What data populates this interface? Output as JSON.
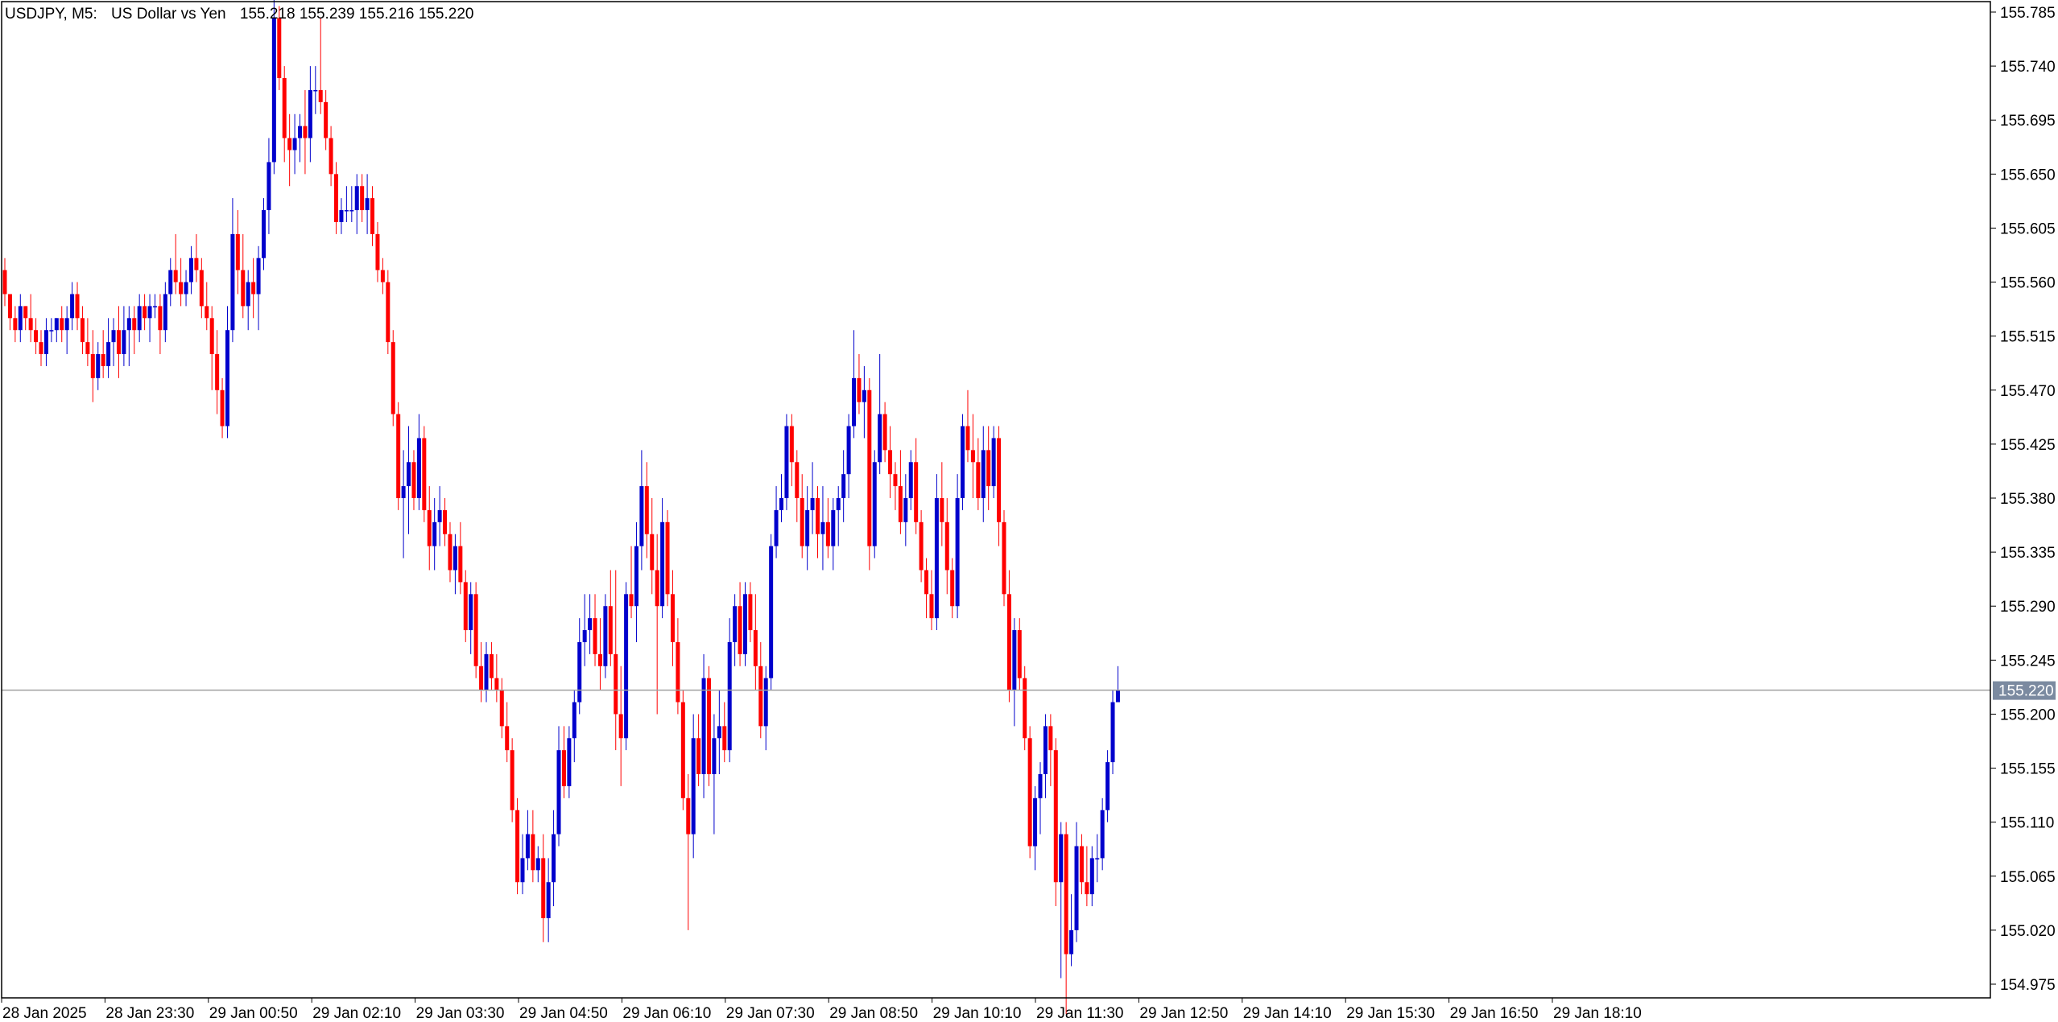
{
  "header": {
    "symbol": "USDJPY, M5:",
    "description": "US Dollar vs Yen",
    "ohlc": "155.218 155.239 155.216 155.220"
  },
  "colors": {
    "bull": "#0000CC",
    "bear": "#FF0000",
    "background": "#FFFFFF",
    "axis": "#000000",
    "price_line": "#A0A0A0",
    "price_label_bg": "#7B8AA0",
    "price_label_text": "#FFFFFF"
  },
  "chart_data": {
    "type": "candlestick",
    "symbol": "USDJPY",
    "timeframe": "M5",
    "ylim": [
      154.94,
      155.805
    ],
    "grid": false,
    "y_ticks": [
      "155.785",
      "155.740",
      "155.695",
      "155.650",
      "155.605",
      "155.560",
      "155.515",
      "155.470",
      "155.425",
      "155.380",
      "155.335",
      "155.290",
      "155.245",
      "155.200",
      "155.155",
      "155.110",
      "155.065",
      "155.020",
      "154.975"
    ],
    "x_ticks": [
      "28 Jan 2025",
      "28 Jan 23:30",
      "29 Jan 00:50",
      "29 Jan 02:10",
      "29 Jan 03:30",
      "29 Jan 04:50",
      "29 Jan 06:10",
      "29 Jan 07:30",
      "29 Jan 08:50",
      "29 Jan 10:10",
      "29 Jan 11:30",
      "29 Jan 12:50",
      "29 Jan 14:10",
      "29 Jan 15:30",
      "29 Jan 16:50",
      "29 Jan 18:10"
    ],
    "current_price": {
      "value": 155.22,
      "label": "155.220"
    },
    "candles_ohlc": [
      [
        155.57,
        155.58,
        155.54,
        155.55
      ],
      [
        155.55,
        155.55,
        155.52,
        155.53
      ],
      [
        155.53,
        155.54,
        155.51,
        155.52
      ],
      [
        155.52,
        155.55,
        155.51,
        155.54
      ],
      [
        155.54,
        155.54,
        155.52,
        155.53
      ],
      [
        155.53,
        155.55,
        155.51,
        155.52
      ],
      [
        155.52,
        155.53,
        155.5,
        155.51
      ],
      [
        155.51,
        155.52,
        155.49,
        155.5
      ],
      [
        155.5,
        155.53,
        155.49,
        155.52
      ],
      [
        155.52,
        155.53,
        155.51,
        155.52
      ],
      [
        155.52,
        155.53,
        155.51,
        155.53
      ],
      [
        155.53,
        155.54,
        155.51,
        155.52
      ],
      [
        155.52,
        155.54,
        155.5,
        155.53
      ],
      [
        155.53,
        155.56,
        155.52,
        155.55
      ],
      [
        155.55,
        155.56,
        155.52,
        155.53
      ],
      [
        155.53,
        155.54,
        155.5,
        155.51
      ],
      [
        155.51,
        155.53,
        155.49,
        155.5
      ],
      [
        155.5,
        155.52,
        155.46,
        155.48
      ],
      [
        155.48,
        155.51,
        155.47,
        155.5
      ],
      [
        155.5,
        155.52,
        155.48,
        155.49
      ],
      [
        155.49,
        155.53,
        155.48,
        155.51
      ],
      [
        155.51,
        155.53,
        155.49,
        155.52
      ],
      [
        155.52,
        155.54,
        155.48,
        155.5
      ],
      [
        155.5,
        155.54,
        155.49,
        155.52
      ],
      [
        155.52,
        155.54,
        155.49,
        155.53
      ],
      [
        155.53,
        155.54,
        155.5,
        155.52
      ],
      [
        155.52,
        155.55,
        155.51,
        155.54
      ],
      [
        155.54,
        155.55,
        155.52,
        155.53
      ],
      [
        155.53,
        155.55,
        155.51,
        155.54
      ],
      [
        155.54,
        155.55,
        155.53,
        155.54
      ],
      [
        155.54,
        155.55,
        155.5,
        155.52
      ],
      [
        155.52,
        155.56,
        155.51,
        155.55
      ],
      [
        155.55,
        155.58,
        155.54,
        155.57
      ],
      [
        155.57,
        155.6,
        155.55,
        155.56
      ],
      [
        155.56,
        155.58,
        155.54,
        155.55
      ],
      [
        155.55,
        155.57,
        155.54,
        155.56
      ],
      [
        155.56,
        155.59,
        155.55,
        155.58
      ],
      [
        155.58,
        155.6,
        155.56,
        155.57
      ],
      [
        155.57,
        155.58,
        155.53,
        155.54
      ],
      [
        155.54,
        155.56,
        155.52,
        155.53
      ],
      [
        155.53,
        155.54,
        155.47,
        155.5
      ],
      [
        155.5,
        155.52,
        155.45,
        155.47
      ],
      [
        155.47,
        155.48,
        155.43,
        155.44
      ],
      [
        155.44,
        155.54,
        155.43,
        155.52
      ],
      [
        155.52,
        155.63,
        155.51,
        155.6
      ],
      [
        155.6,
        155.62,
        155.55,
        155.57
      ],
      [
        155.57,
        155.6,
        155.53,
        155.54
      ],
      [
        155.54,
        155.57,
        155.52,
        155.56
      ],
      [
        155.56,
        155.58,
        155.53,
        155.55
      ],
      [
        155.55,
        155.59,
        155.52,
        155.58
      ],
      [
        155.58,
        155.63,
        155.57,
        155.62
      ],
      [
        155.62,
        155.68,
        155.6,
        155.66
      ],
      [
        155.66,
        155.8,
        155.65,
        155.78
      ],
      [
        155.78,
        155.79,
        155.72,
        155.73
      ],
      [
        155.73,
        155.74,
        155.66,
        155.68
      ],
      [
        155.68,
        155.7,
        155.64,
        155.67
      ],
      [
        155.67,
        155.7,
        155.65,
        155.68
      ],
      [
        155.68,
        155.7,
        155.66,
        155.69
      ],
      [
        155.69,
        155.72,
        155.65,
        155.68
      ],
      [
        155.68,
        155.74,
        155.66,
        155.72
      ],
      [
        155.72,
        155.74,
        155.7,
        155.72
      ],
      [
        155.72,
        155.78,
        155.7,
        155.71
      ],
      [
        155.71,
        155.72,
        155.67,
        155.68
      ],
      [
        155.68,
        155.69,
        155.64,
        155.65
      ],
      [
        155.65,
        155.66,
        155.6,
        155.61
      ],
      [
        155.61,
        155.63,
        155.6,
        155.62
      ],
      [
        155.62,
        155.64,
        155.61,
        155.62
      ],
      [
        155.62,
        155.64,
        155.61,
        155.62
      ],
      [
        155.62,
        155.65,
        155.6,
        155.64
      ],
      [
        155.64,
        155.65,
        155.61,
        155.62
      ],
      [
        155.62,
        155.65,
        155.6,
        155.63
      ],
      [
        155.63,
        155.64,
        155.59,
        155.6
      ],
      [
        155.6,
        155.61,
        155.56,
        155.57
      ],
      [
        155.57,
        155.58,
        155.55,
        155.56
      ],
      [
        155.56,
        155.57,
        155.5,
        155.51
      ],
      [
        155.51,
        155.52,
        155.44,
        155.45
      ],
      [
        155.45,
        155.46,
        155.37,
        155.38
      ],
      [
        155.38,
        155.42,
        155.33,
        155.39
      ],
      [
        155.39,
        155.44,
        155.35,
        155.41
      ],
      [
        155.41,
        155.42,
        155.37,
        155.38
      ],
      [
        155.38,
        155.45,
        155.37,
        155.43
      ],
      [
        155.43,
        155.44,
        155.36,
        155.37
      ],
      [
        155.37,
        155.39,
        155.32,
        155.34
      ],
      [
        155.34,
        155.38,
        155.32,
        155.36
      ],
      [
        155.36,
        155.39,
        155.34,
        155.37
      ],
      [
        155.37,
        155.38,
        155.34,
        155.35
      ],
      [
        155.35,
        155.36,
        155.31,
        155.32
      ],
      [
        155.32,
        155.35,
        155.3,
        155.34
      ],
      [
        155.34,
        155.36,
        155.3,
        155.31
      ],
      [
        155.31,
        155.32,
        155.26,
        155.27
      ],
      [
        155.27,
        155.31,
        155.25,
        155.3
      ],
      [
        155.3,
        155.31,
        155.23,
        155.24
      ],
      [
        155.24,
        155.26,
        155.21,
        155.22
      ],
      [
        155.22,
        155.26,
        155.21,
        155.25
      ],
      [
        155.25,
        155.26,
        155.22,
        155.23
      ],
      [
        155.23,
        155.25,
        155.21,
        155.22
      ],
      [
        155.22,
        155.23,
        155.18,
        155.19
      ],
      [
        155.19,
        155.21,
        155.16,
        155.17
      ],
      [
        155.17,
        155.18,
        155.11,
        155.12
      ],
      [
        155.12,
        155.13,
        155.05,
        155.06
      ],
      [
        155.06,
        155.1,
        155.05,
        155.08
      ],
      [
        155.08,
        155.12,
        155.07,
        155.1
      ],
      [
        155.1,
        155.12,
        155.06,
        155.07
      ],
      [
        155.07,
        155.09,
        155.06,
        155.08
      ],
      [
        155.08,
        155.1,
        155.01,
        155.03
      ],
      [
        155.03,
        155.08,
        155.01,
        155.06
      ],
      [
        155.06,
        155.12,
        155.04,
        155.1
      ],
      [
        155.1,
        155.19,
        155.09,
        155.17
      ],
      [
        155.17,
        155.19,
        155.13,
        155.14
      ],
      [
        155.14,
        155.19,
        155.13,
        155.18
      ],
      [
        155.18,
        155.22,
        155.16,
        155.21
      ],
      [
        155.21,
        155.28,
        155.2,
        155.26
      ],
      [
        155.26,
        155.3,
        155.24,
        155.27
      ],
      [
        155.27,
        155.3,
        155.25,
        155.28
      ],
      [
        155.28,
        155.3,
        155.24,
        155.25
      ],
      [
        155.25,
        155.28,
        155.22,
        155.24
      ],
      [
        155.24,
        155.3,
        155.23,
        155.29
      ],
      [
        155.29,
        155.32,
        155.24,
        155.25
      ],
      [
        155.25,
        155.32,
        155.17,
        155.2
      ],
      [
        155.2,
        155.24,
        155.14,
        155.18
      ],
      [
        155.18,
        155.31,
        155.17,
        155.3
      ],
      [
        155.3,
        155.34,
        155.28,
        155.29
      ],
      [
        155.29,
        155.36,
        155.26,
        155.34
      ],
      [
        155.34,
        155.42,
        155.32,
        155.39
      ],
      [
        155.39,
        155.41,
        155.33,
        155.35
      ],
      [
        155.35,
        155.38,
        155.3,
        155.32
      ],
      [
        155.32,
        155.35,
        155.2,
        155.29
      ],
      [
        155.29,
        155.38,
        155.28,
        155.36
      ],
      [
        155.36,
        155.37,
        155.29,
        155.3
      ],
      [
        155.3,
        155.32,
        155.24,
        155.26
      ],
      [
        155.26,
        155.28,
        155.2,
        155.21
      ],
      [
        155.21,
        155.22,
        155.12,
        155.13
      ],
      [
        155.13,
        155.15,
        155.02,
        155.1
      ],
      [
        155.1,
        155.2,
        155.08,
        155.18
      ],
      [
        155.18,
        155.2,
        155.14,
        155.15
      ],
      [
        155.15,
        155.25,
        155.13,
        155.23
      ],
      [
        155.23,
        155.24,
        155.14,
        155.15
      ],
      [
        155.15,
        155.2,
        155.1,
        155.18
      ],
      [
        155.18,
        155.22,
        155.15,
        155.19
      ],
      [
        155.19,
        155.21,
        155.16,
        155.17
      ],
      [
        155.17,
        155.28,
        155.16,
        155.26
      ],
      [
        155.26,
        155.3,
        155.24,
        155.29
      ],
      [
        155.29,
        155.31,
        155.24,
        155.25
      ],
      [
        155.25,
        155.31,
        155.24,
        155.3
      ],
      [
        155.3,
        155.31,
        155.26,
        155.27
      ],
      [
        155.27,
        155.3,
        155.22,
        155.24
      ],
      [
        155.24,
        155.26,
        155.18,
        155.19
      ],
      [
        155.19,
        155.24,
        155.17,
        155.23
      ],
      [
        155.23,
        155.35,
        155.22,
        155.34
      ],
      [
        155.34,
        155.39,
        155.33,
        155.37
      ],
      [
        155.37,
        155.4,
        155.36,
        155.38
      ],
      [
        155.38,
        155.45,
        155.37,
        155.44
      ],
      [
        155.44,
        155.45,
        155.39,
        155.41
      ],
      [
        155.41,
        155.42,
        155.36,
        155.38
      ],
      [
        155.38,
        155.4,
        155.33,
        155.34
      ],
      [
        155.34,
        155.39,
        155.32,
        155.37
      ],
      [
        155.37,
        155.41,
        155.35,
        155.38
      ],
      [
        155.38,
        155.39,
        155.33,
        155.35
      ],
      [
        155.35,
        155.39,
        155.32,
        155.36
      ],
      [
        155.36,
        155.38,
        155.33,
        155.34
      ],
      [
        155.34,
        155.38,
        155.32,
        155.37
      ],
      [
        155.37,
        155.39,
        155.34,
        155.38
      ],
      [
        155.38,
        155.42,
        155.36,
        155.4
      ],
      [
        155.4,
        155.45,
        155.38,
        155.44
      ],
      [
        155.44,
        155.52,
        155.43,
        155.48
      ],
      [
        155.48,
        155.5,
        155.45,
        155.46
      ],
      [
        155.46,
        155.49,
        155.43,
        155.47
      ],
      [
        155.47,
        155.48,
        155.32,
        155.34
      ],
      [
        155.34,
        155.42,
        155.33,
        155.41
      ],
      [
        155.41,
        155.5,
        155.4,
        155.45
      ],
      [
        155.45,
        155.46,
        155.41,
        155.42
      ],
      [
        155.42,
        155.44,
        155.38,
        155.4
      ],
      [
        155.4,
        155.41,
        155.37,
        155.39
      ],
      [
        155.39,
        155.42,
        155.35,
        155.36
      ],
      [
        155.36,
        155.4,
        155.34,
        155.38
      ],
      [
        155.38,
        155.42,
        155.37,
        155.41
      ],
      [
        155.41,
        155.43,
        155.35,
        155.36
      ],
      [
        155.36,
        155.37,
        155.31,
        155.32
      ],
      [
        155.32,
        155.33,
        155.28,
        155.3
      ],
      [
        155.3,
        155.32,
        155.27,
        155.28
      ],
      [
        155.28,
        155.4,
        155.27,
        155.38
      ],
      [
        155.38,
        155.41,
        155.34,
        155.36
      ],
      [
        155.36,
        155.38,
        155.3,
        155.32
      ],
      [
        155.32,
        155.33,
        155.28,
        155.29
      ],
      [
        155.29,
        155.4,
        155.28,
        155.38
      ],
      [
        155.38,
        155.45,
        155.37,
        155.44
      ],
      [
        155.44,
        155.47,
        155.41,
        155.42
      ],
      [
        155.42,
        155.45,
        155.38,
        155.41
      ],
      [
        155.41,
        155.43,
        155.37,
        155.38
      ],
      [
        155.38,
        155.44,
        155.36,
        155.42
      ],
      [
        155.42,
        155.44,
        155.37,
        155.39
      ],
      [
        155.39,
        155.44,
        155.38,
        155.43
      ],
      [
        155.43,
        155.44,
        155.34,
        155.36
      ],
      [
        155.36,
        155.37,
        155.29,
        155.3
      ],
      [
        155.3,
        155.32,
        155.21,
        155.22
      ],
      [
        155.22,
        155.28,
        155.19,
        155.27
      ],
      [
        155.27,
        155.28,
        155.22,
        155.23
      ],
      [
        155.23,
        155.24,
        155.17,
        155.18
      ],
      [
        155.18,
        155.19,
        155.08,
        155.09
      ],
      [
        155.09,
        155.14,
        155.07,
        155.13
      ],
      [
        155.13,
        155.16,
        155.1,
        155.15
      ],
      [
        155.15,
        155.2,
        155.13,
        155.19
      ],
      [
        155.19,
        155.2,
        155.14,
        155.17
      ],
      [
        155.17,
        155.18,
        155.04,
        155.06
      ],
      [
        155.06,
        155.11,
        154.98,
        155.1
      ],
      [
        155.1,
        155.11,
        154.95,
        155.0
      ],
      [
        155.0,
        155.05,
        154.99,
        155.02
      ],
      [
        155.02,
        155.11,
        155.01,
        155.09
      ],
      [
        155.09,
        155.1,
        155.05,
        155.06
      ],
      [
        155.06,
        155.09,
        155.04,
        155.05
      ],
      [
        155.05,
        155.09,
        155.04,
        155.08
      ],
      [
        155.08,
        155.1,
        155.06,
        155.08
      ],
      [
        155.08,
        155.13,
        155.07,
        155.12
      ],
      [
        155.12,
        155.17,
        155.11,
        155.16
      ],
      [
        155.16,
        155.22,
        155.15,
        155.21
      ],
      [
        155.21,
        155.24,
        155.21,
        155.22
      ]
    ]
  }
}
